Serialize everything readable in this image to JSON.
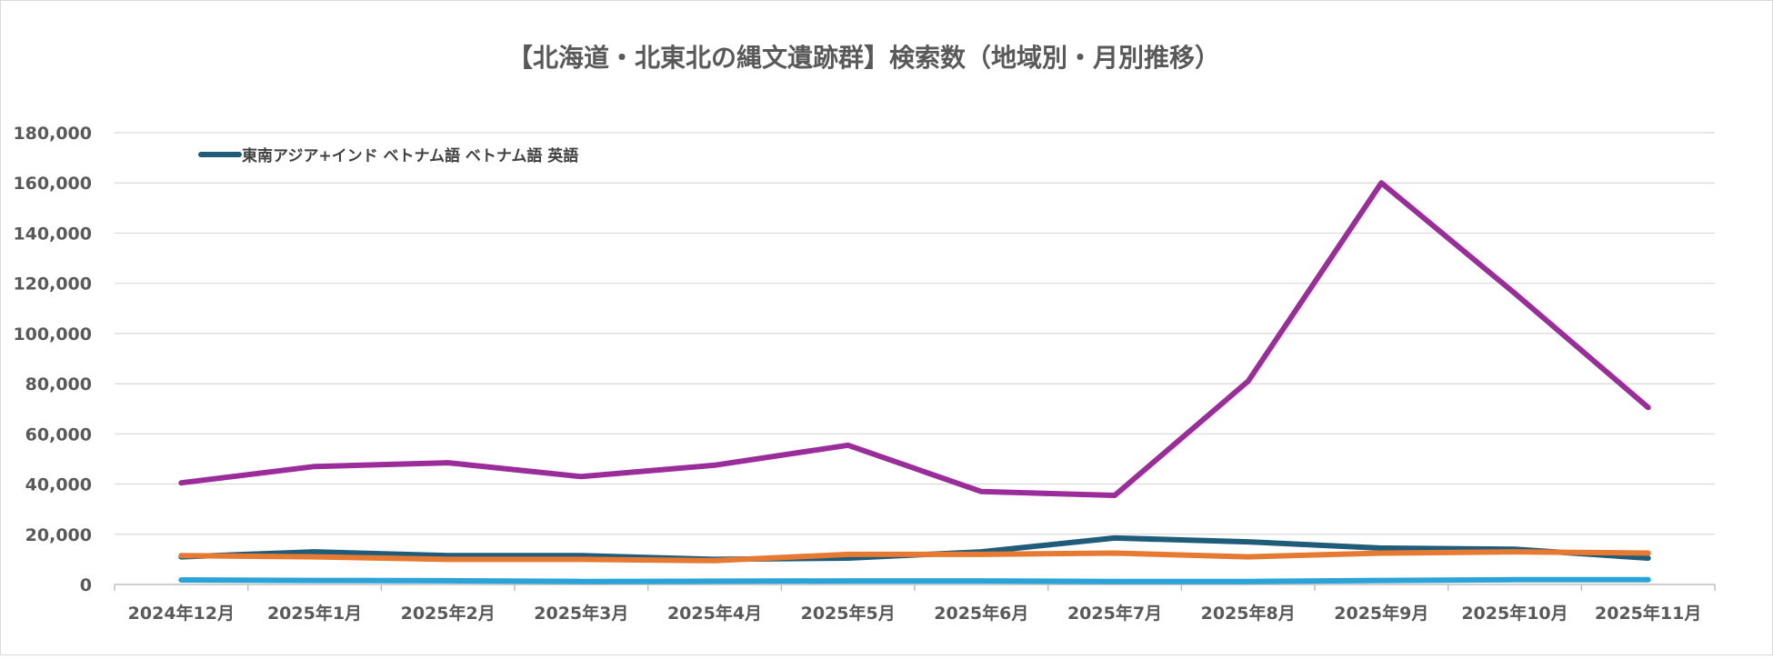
{
  "chart_data": {
    "type": "line",
    "title": "【北海道・北東北の縄文遺跡群】検索数（地域別・月別推移）",
    "categories": [
      "2024年12月",
      "2025年1月",
      "2025年2月",
      "2025年3月",
      "2025年4月",
      "2025年5月",
      "2025年6月",
      "2025年7月",
      "2025年8月",
      "2025年9月",
      "2025年10月",
      "2025年11月"
    ],
    "ylim": [
      0,
      180000
    ],
    "yticks": [
      0,
      20000,
      40000,
      60000,
      80000,
      100000,
      120000,
      140000,
      160000,
      180000
    ],
    "ytick_labels": [
      "0",
      "20,000",
      "40,000",
      "60,000",
      "80,000",
      "100,000",
      "120,000",
      "140,000",
      "160,000",
      "180,000"
    ],
    "grid": true,
    "legend": {
      "position": "top-left",
      "label": "東南アジア+インド ベトナム語 ベトナム語 英語",
      "color": "#1f5c7a"
    },
    "series": [
      {
        "color": "#9b2d9a",
        "values": [
          40500,
          47000,
          48500,
          43000,
          47500,
          55500,
          37000,
          35500,
          81000,
          160000,
          116000,
          70500
        ]
      },
      {
        "color": "#1f5c7a",
        "values": [
          11000,
          13000,
          11500,
          11500,
          10000,
          10500,
          13000,
          18500,
          17000,
          14500,
          14000,
          10500
        ]
      },
      {
        "color": "#e67a33",
        "values": [
          11500,
          11000,
          10000,
          10000,
          9500,
          12000,
          12000,
          12500,
          11000,
          12500,
          13000,
          12500
        ]
      },
      {
        "color": "#2aa3d8",
        "values": [
          1800,
          1600,
          1500,
          1200,
          1300,
          1400,
          1400,
          1200,
          1200,
          1600,
          1900,
          1900
        ]
      }
    ]
  }
}
